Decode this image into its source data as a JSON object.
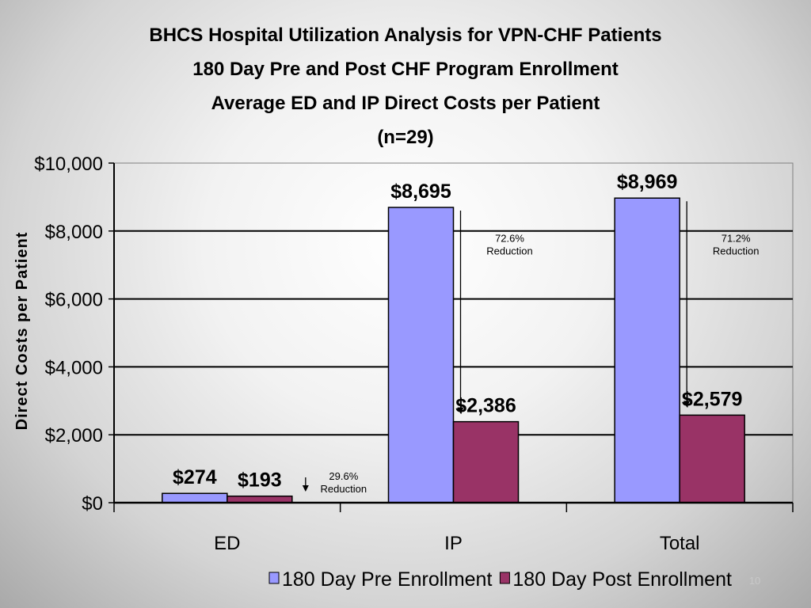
{
  "slide": {
    "page_number": "10"
  },
  "chart_data": {
    "type": "bar",
    "title": [
      "BHCS Hospital Utilization Analysis for VPN-CHF Patients",
      "180 Day Pre and Post CHF Program Enrollment",
      "Average ED and IP Direct Costs per Patient",
      "(n=29)"
    ],
    "ylabel": "Direct Costs per Patient",
    "xlabel": "",
    "ylim": [
      0,
      10000
    ],
    "yticks": [
      {
        "value": 0,
        "label": "$0"
      },
      {
        "value": 2000,
        "label": "$2,000"
      },
      {
        "value": 4000,
        "label": "$4,000"
      },
      {
        "value": 6000,
        "label": "$6,000"
      },
      {
        "value": 8000,
        "label": "$8,000"
      },
      {
        "value": 10000,
        "label": "$10,000"
      }
    ],
    "grid": true,
    "legend_position": "bottom",
    "categories": [
      "ED",
      "IP",
      "Total"
    ],
    "series": [
      {
        "name": "180 Day Pre Enrollment",
        "color": "#9999ff",
        "values": [
          274,
          8695,
          8969
        ],
        "labels": [
          "$274",
          "$8,695",
          "$8,969"
        ]
      },
      {
        "name": "180 Day Post Enrollment",
        "color": "#993366",
        "values": [
          193,
          2386,
          2579
        ],
        "labels": [
          "$193",
          "$2,386",
          "$2,579"
        ]
      }
    ],
    "annotations": [
      {
        "category": "ED",
        "lines": [
          "29.6%",
          "Reduction"
        ]
      },
      {
        "category": "IP",
        "lines": [
          "72.6%",
          "Reduction"
        ]
      },
      {
        "category": "Total",
        "lines": [
          "71.2%",
          "Reduction"
        ]
      }
    ]
  }
}
